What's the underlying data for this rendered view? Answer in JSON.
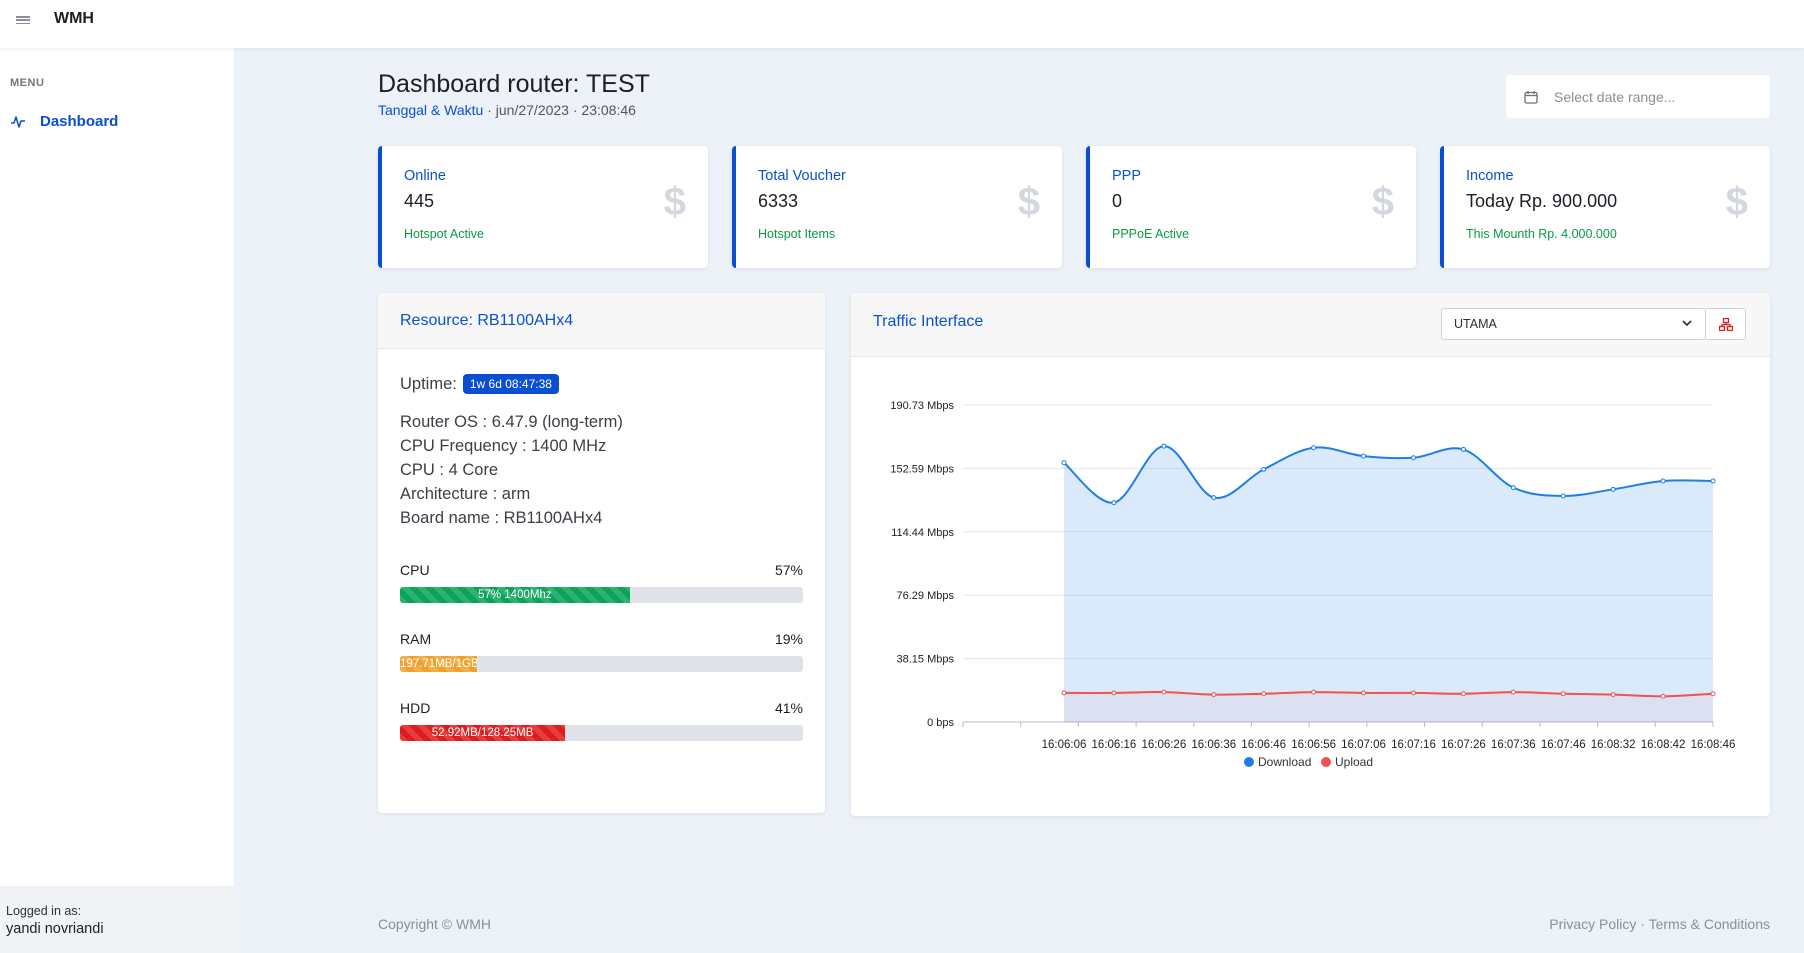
{
  "app": {
    "brand": "WMH"
  },
  "sidebar": {
    "menu_label": "MENU",
    "items": [
      {
        "label": "Dashboard",
        "icon": "activity-icon"
      }
    ],
    "logged_in_label": "Logged in as:",
    "user_name": "yandi novriandi"
  },
  "header": {
    "title": "Dashboard router: TEST",
    "datetime_label": "Tanggal & Waktu",
    "datetime_sep": " · ",
    "date": "jun/27/2023",
    "time": "23:08:46",
    "date_range_placeholder": "Select date range..."
  },
  "stats": [
    {
      "title": "Online",
      "value": "445",
      "note": "Hotspot Active"
    },
    {
      "title": "Total Voucher",
      "value": "6333",
      "note": "Hotspot Items"
    },
    {
      "title": "PPP",
      "value": "0",
      "note": "PPPoE Active"
    },
    {
      "title": "Income",
      "value": "Today Rp. 900.000",
      "note": "This Mounth Rp. 4.000.000"
    }
  ],
  "stat_icon": "$",
  "resource": {
    "title": "Resource: RB1100AHx4",
    "uptime_label": "Uptime:",
    "uptime_value": "1w 6d 08:47:38",
    "specs": [
      "Router OS : 6.47.9 (long-term)",
      "CPU Frequency : 1400 MHz",
      "CPU : 4 Core",
      "Architecture : arm",
      "Board name : RB1100AHx4"
    ],
    "bars": [
      {
        "label": "CPU",
        "percent_text": "57%",
        "fraction": 0.57,
        "fill_text": "57% 1400Mhz",
        "color": "#0aa35a"
      },
      {
        "label": "RAM",
        "percent_text": "19%",
        "fraction": 0.19,
        "fill_text": "197.71MB/1GB",
        "color": "#f0a02a"
      },
      {
        "label": "HDD",
        "percent_text": "41%",
        "fraction": 0.41,
        "fill_text": "52.92MB/128.25MB",
        "color": "#e01b1b"
      }
    ]
  },
  "traffic": {
    "title": "Traffic Interface",
    "interface_selected": "UTAMA"
  },
  "colors": {
    "accent": "#0a4fd1",
    "download": "#1d7fe6",
    "upload": "#f05252",
    "success": "#0a9a45"
  },
  "chart_data": {
    "type": "line",
    "title": "Traffic Interface",
    "ylabel": "",
    "xlabel": "",
    "ylim": [
      0,
      190.73
    ],
    "y_ticks": [
      {
        "value": 0,
        "label": "0 bps"
      },
      {
        "value": 38.15,
        "label": "38.15 Mbps"
      },
      {
        "value": 76.29,
        "label": "76.29 Mbps"
      },
      {
        "value": 114.44,
        "label": "114.44 Mbps"
      },
      {
        "value": 152.59,
        "label": "152.59 Mbps"
      },
      {
        "value": 190.73,
        "label": "190.73 Mbps"
      }
    ],
    "categories": [
      "16:06:06",
      "16:06:16",
      "16:06:26",
      "16:06:36",
      "16:06:46",
      "16:06:56",
      "16:07:06",
      "16:07:16",
      "16:07:26",
      "16:07:36",
      "16:07:46",
      "16:08:32",
      "16:08:42",
      "16:08:46"
    ],
    "series": [
      {
        "name": "Download",
        "values": [
          156,
          132,
          166,
          135,
          152,
          165,
          160,
          159,
          164,
          141,
          136,
          140,
          145,
          145
        ]
      },
      {
        "name": "Upload",
        "values": [
          17.5,
          17.5,
          18,
          16.5,
          17,
          18,
          17.5,
          17.5,
          17,
          18,
          17,
          16.5,
          15.5,
          17
        ]
      }
    ],
    "legend_position": "bottom"
  },
  "footer": {
    "copyright": "Copyright © WMH",
    "privacy": "Privacy Policy",
    "separator": " · ",
    "terms": "Terms & Conditions"
  }
}
